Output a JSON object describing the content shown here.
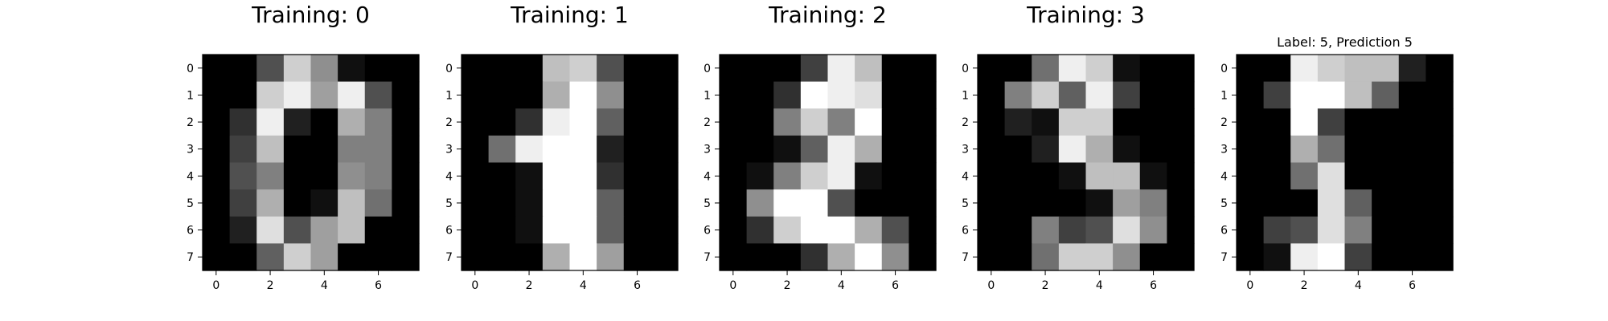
{
  "chart_data": [
    {
      "type": "heatmap",
      "title": "Training: 0",
      "colormap": "gray",
      "xticks": [
        "0",
        "2",
        "4",
        "6"
      ],
      "yticks": [
        "0",
        "1",
        "2",
        "3",
        "4",
        "5",
        "6",
        "7"
      ],
      "values": [
        [
          0,
          0,
          5,
          13,
          9,
          1,
          0,
          0
        ],
        [
          0,
          0,
          13,
          15,
          10,
          15,
          5,
          0
        ],
        [
          0,
          3,
          15,
          2,
          0,
          11,
          8,
          0
        ],
        [
          0,
          4,
          12,
          0,
          0,
          8,
          8,
          0
        ],
        [
          0,
          5,
          8,
          0,
          0,
          9,
          8,
          0
        ],
        [
          0,
          4,
          11,
          0,
          1,
          12,
          7,
          0
        ],
        [
          0,
          2,
          14,
          5,
          10,
          12,
          0,
          0
        ],
        [
          0,
          0,
          6,
          13,
          10,
          0,
          0,
          0
        ]
      ]
    },
    {
      "type": "heatmap",
      "title": "Training: 1",
      "colormap": "gray",
      "xticks": [
        "0",
        "2",
        "4",
        "6"
      ],
      "yticks": [
        "0",
        "1",
        "2",
        "3",
        "4",
        "5",
        "6",
        "7"
      ],
      "values": [
        [
          0,
          0,
          0,
          12,
          13,
          5,
          0,
          0
        ],
        [
          0,
          0,
          0,
          11,
          16,
          9,
          0,
          0
        ],
        [
          0,
          0,
          3,
          15,
          16,
          6,
          0,
          0
        ],
        [
          0,
          7,
          15,
          16,
          16,
          2,
          0,
          0
        ],
        [
          0,
          0,
          1,
          16,
          16,
          3,
          0,
          0
        ],
        [
          0,
          0,
          1,
          16,
          16,
          6,
          0,
          0
        ],
        [
          0,
          0,
          1,
          16,
          16,
          6,
          0,
          0
        ],
        [
          0,
          0,
          0,
          11,
          16,
          10,
          0,
          0
        ]
      ]
    },
    {
      "type": "heatmap",
      "title": "Training: 2",
      "colormap": "gray",
      "xticks": [
        "0",
        "2",
        "4",
        "6"
      ],
      "yticks": [
        "0",
        "1",
        "2",
        "3",
        "4",
        "5",
        "6",
        "7"
      ],
      "values": [
        [
          0,
          0,
          0,
          4,
          15,
          12,
          0,
          0
        ],
        [
          0,
          0,
          3,
          16,
          15,
          14,
          0,
          0
        ],
        [
          0,
          0,
          8,
          13,
          8,
          16,
          0,
          0
        ],
        [
          0,
          0,
          1,
          6,
          15,
          11,
          0,
          0
        ],
        [
          0,
          1,
          8,
          13,
          15,
          1,
          0,
          0
        ],
        [
          0,
          9,
          16,
          16,
          5,
          0,
          0,
          0
        ],
        [
          0,
          3,
          13,
          16,
          16,
          11,
          5,
          0
        ],
        [
          0,
          0,
          0,
          3,
          11,
          16,
          9,
          0
        ]
      ]
    },
    {
      "type": "heatmap",
      "title": "Training: 3",
      "colormap": "gray",
      "xticks": [
        "0",
        "2",
        "4",
        "6"
      ],
      "yticks": [
        "0",
        "1",
        "2",
        "3",
        "4",
        "5",
        "6",
        "7"
      ],
      "values": [
        [
          0,
          0,
          7,
          15,
          13,
          1,
          0,
          0
        ],
        [
          0,
          8,
          13,
          6,
          15,
          4,
          0,
          0
        ],
        [
          0,
          2,
          1,
          13,
          13,
          0,
          0,
          0
        ],
        [
          0,
          0,
          2,
          15,
          11,
          1,
          0,
          0
        ],
        [
          0,
          0,
          0,
          1,
          12,
          12,
          1,
          0
        ],
        [
          0,
          0,
          0,
          0,
          1,
          10,
          8,
          0
        ],
        [
          0,
          0,
          8,
          4,
          5,
          14,
          9,
          0
        ],
        [
          0,
          0,
          7,
          13,
          13,
          9,
          0,
          0
        ]
      ]
    },
    {
      "type": "heatmap",
      "title": "Label: 5, Prediction 5",
      "colormap": "gray",
      "xticks": [
        "0",
        "2",
        "4",
        "6"
      ],
      "yticks": [
        "0",
        "1",
        "2",
        "3",
        "4",
        "5",
        "6",
        "7"
      ],
      "values": [
        [
          0,
          0,
          15,
          13,
          12,
          12,
          2,
          0
        ],
        [
          0,
          4,
          16,
          16,
          12,
          6,
          0,
          0
        ],
        [
          0,
          0,
          16,
          4,
          0,
          0,
          0,
          0
        ],
        [
          0,
          0,
          11,
          7,
          0,
          0,
          0,
          0
        ],
        [
          0,
          0,
          7,
          14,
          0,
          0,
          0,
          0
        ],
        [
          0,
          0,
          0,
          14,
          6,
          0,
          0,
          0
        ],
        [
          0,
          4,
          5,
          14,
          8,
          0,
          0,
          0
        ],
        [
          0,
          1,
          15,
          16,
          4,
          0,
          0,
          0
        ]
      ]
    }
  ]
}
